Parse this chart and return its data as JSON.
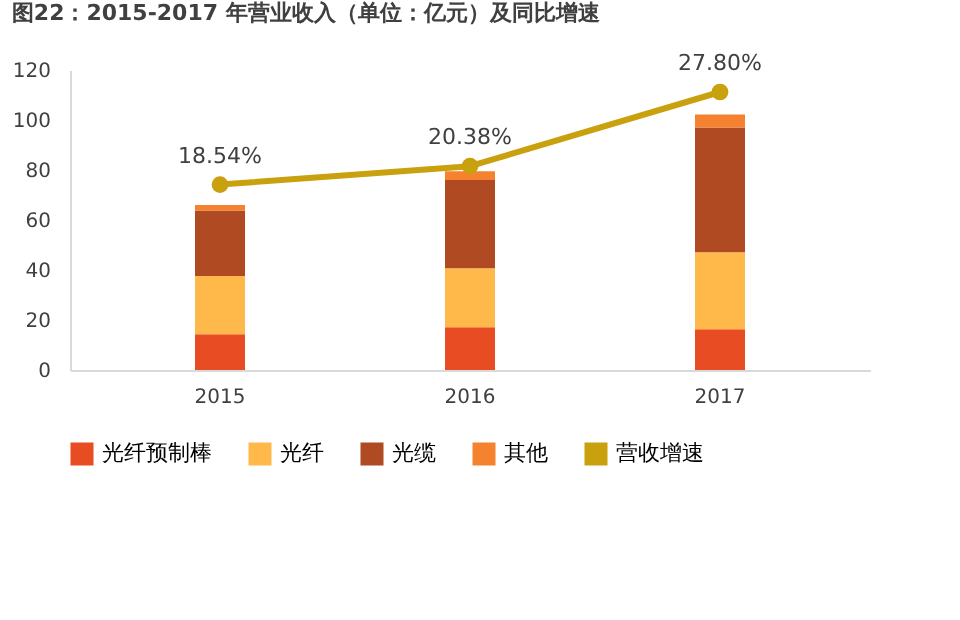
{
  "chart_data": {
    "type": "bar",
    "title": "图22：2015-2017 年营业收入（单位：亿元）及同比增速",
    "stacked": true,
    "categories": [
      "2015",
      "2016",
      "2017"
    ],
    "ylim": [
      0,
      120
    ],
    "yticks": [
      0,
      20,
      40,
      60,
      80,
      100,
      120
    ],
    "y2lim": [
      0,
      30
    ],
    "tick_labels": "xy",
    "grid": false,
    "legend": "bottom",
    "series": [
      {
        "name": "光纤预制棒",
        "color": "#e84c22",
        "values": [
          14.3,
          17.1,
          16.3
        ]
      },
      {
        "name": "光纤",
        "color": "#ffb94a",
        "values": [
          23.3,
          23.6,
          30.8
        ]
      },
      {
        "name": "光缆",
        "color": "#b04a23",
        "values": [
          26.2,
          35.3,
          49.9
        ]
      },
      {
        "name": "其他",
        "color": "#f5822f",
        "values": [
          2.2,
          3.5,
          5.2
        ]
      },
      {
        "name": "营收增速",
        "color": "#c9a00e",
        "type": "line",
        "axis": "y2",
        "marker": "circle",
        "values": [
          18.54,
          20.38,
          27.8
        ],
        "value_labels": [
          "18.54%",
          "20.38%",
          "27.80%"
        ]
      }
    ]
  }
}
